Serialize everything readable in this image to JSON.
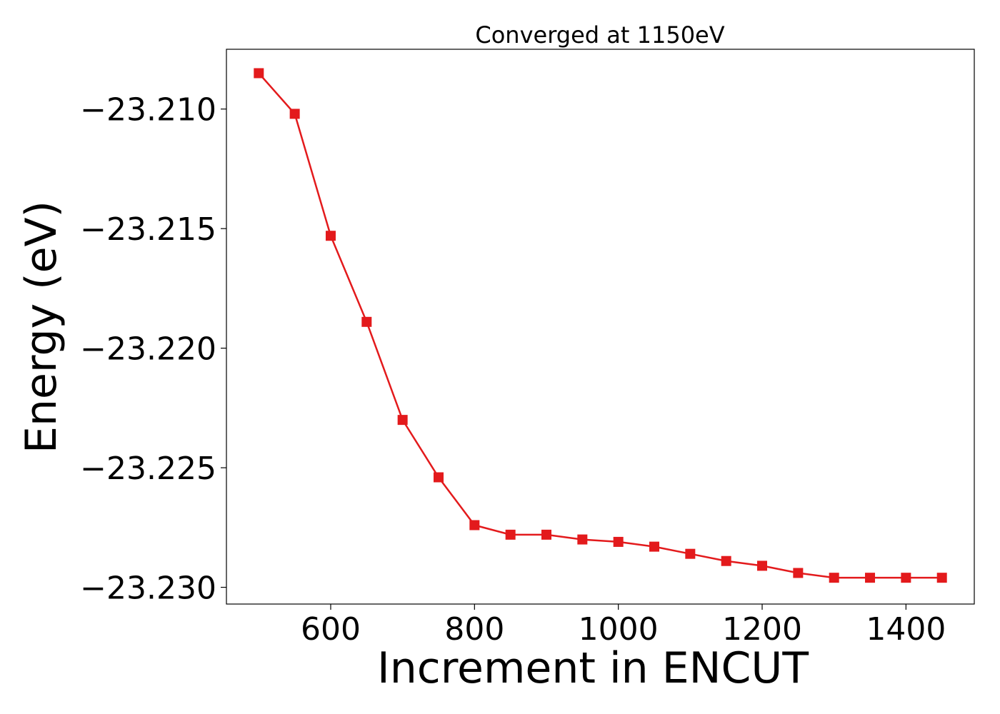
{
  "chart_data": {
    "type": "line",
    "title": "Converged at 1150eV",
    "xlabel": "Increment in ENCUT",
    "ylabel": "Energy (eV)",
    "xlim": [
      455,
      1495
    ],
    "ylim": [
      -23.2307,
      -23.2075
    ],
    "xticks": [
      600,
      800,
      1000,
      1200,
      1400
    ],
    "xtick_labels": [
      "600",
      "800",
      "1000",
      "1200",
      "1400"
    ],
    "yticks": [
      -23.21,
      -23.215,
      -23.22,
      -23.225,
      -23.23
    ],
    "ytick_labels": [
      "−23.210",
      "−23.215",
      "−23.220",
      "−23.225",
      "−23.230"
    ],
    "grid": false,
    "series": [
      {
        "color": "#e31a1c",
        "marker": "square",
        "x": [
          500,
          550,
          600,
          650,
          700,
          750,
          800,
          850,
          900,
          950,
          1000,
          1050,
          1100,
          1150,
          1200,
          1250,
          1300,
          1350,
          1400,
          1450
        ],
        "y": [
          -23.2085,
          -23.2102,
          -23.2153,
          -23.2189,
          -23.223,
          -23.2254,
          -23.2274,
          -23.2278,
          -23.2278,
          -23.228,
          -23.2281,
          -23.2283,
          -23.2286,
          -23.2289,
          -23.2291,
          -23.2294,
          -23.2296,
          -23.2296,
          -23.2296,
          -23.2296
        ]
      }
    ]
  }
}
